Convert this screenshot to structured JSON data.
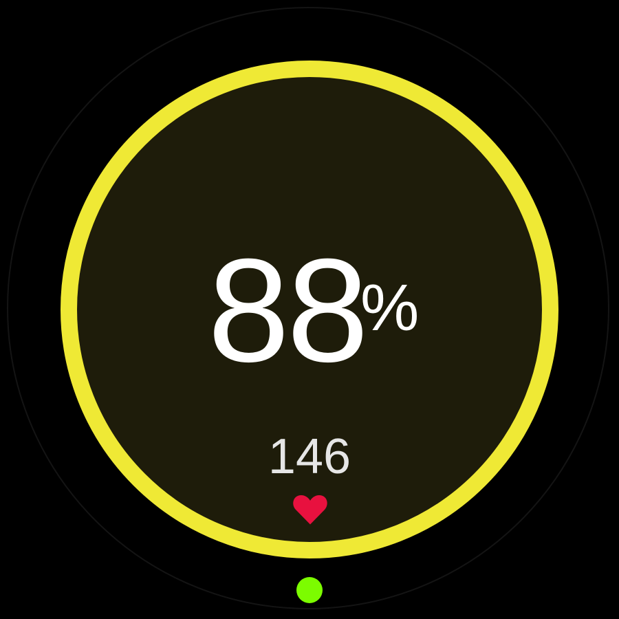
{
  "gauge": {
    "value": "88",
    "unit": "%",
    "progress_percent": 100,
    "ring_color": "#efe935"
  },
  "heart_rate": {
    "value": "146",
    "icon": "heart-icon",
    "icon_color": "#e8113f"
  },
  "page_indicator": {
    "icon": "dot-icon",
    "color": "#7cfc00"
  }
}
